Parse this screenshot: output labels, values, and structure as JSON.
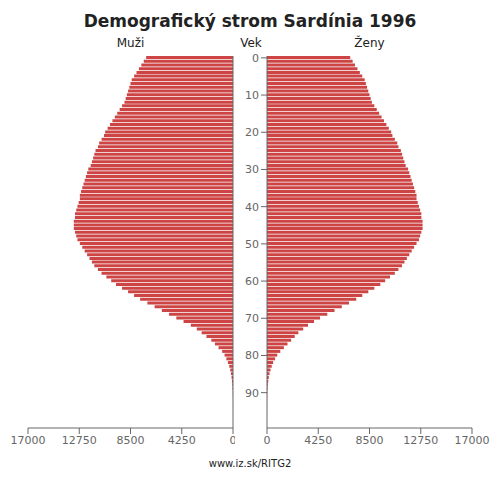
{
  "title": "Demografický strom Sardínia 1996",
  "annotations": [
    "www.iz.sk/RITG2"
  ],
  "chart_data": [
    {
      "type": "bar",
      "orientation": "horizontal",
      "title": "Muži",
      "color": "#cc4444",
      "y": [
        0,
        1,
        2,
        3,
        4,
        5,
        6,
        7,
        8,
        9,
        10,
        11,
        12,
        13,
        14,
        15,
        16,
        17,
        18,
        19,
        20,
        21,
        22,
        23,
        24,
        25,
        26,
        27,
        28,
        29,
        30,
        31,
        32,
        33,
        34,
        35,
        36,
        37,
        38,
        39,
        40,
        41,
        42,
        43,
        44,
        45,
        46,
        47,
        48,
        49,
        50,
        51,
        52,
        53,
        54,
        55,
        56,
        57,
        58,
        59,
        60,
        61,
        62,
        63,
        64,
        65,
        66,
        67,
        68,
        69,
        70,
        71,
        72,
        73,
        74,
        75,
        76,
        77,
        78,
        79,
        80,
        81,
        82,
        83,
        84,
        85,
        86,
        87,
        88,
        89,
        90,
        91,
        92,
        93,
        94,
        95,
        96,
        97,
        98,
        99
      ],
      "values": [
        7200,
        7400,
        7600,
        7800,
        8000,
        8200,
        8400,
        8500,
        8600,
        8700,
        8800,
        8900,
        9000,
        9200,
        9400,
        9600,
        9800,
        10000,
        10200,
        10400,
        10600,
        10700,
        10900,
        11100,
        11200,
        11400,
        11500,
        11600,
        11700,
        11800,
        12000,
        12100,
        12200,
        12300,
        12400,
        12500,
        12600,
        12700,
        12700,
        12800,
        12900,
        13000,
        13100,
        13100,
        13200,
        13200,
        13200,
        13100,
        13000,
        12900,
        12700,
        12500,
        12300,
        12100,
        11900,
        11700,
        11500,
        11200,
        10900,
        10500,
        10100,
        9700,
        9200,
        8700,
        8200,
        7700,
        7100,
        6500,
        5900,
        5300,
        4700,
        4100,
        3500,
        3000,
        2600,
        2200,
        1800,
        1500,
        1200,
        900,
        700,
        550,
        420,
        310,
        230,
        170,
        120,
        85,
        60,
        40,
        25,
        15,
        10,
        6,
        4,
        2,
        1,
        1,
        0,
        0
      ],
      "xlim": [
        17000,
        0
      ],
      "xticks": [
        17000,
        12750,
        8500,
        4250,
        0
      ],
      "ylim": [
        -0.5,
        99.5
      ],
      "tick_labels": "x",
      "grid": false
    },
    {
      "type": "bar",
      "orientation": "horizontal",
      "title": "Ženy",
      "y_label": "Vek",
      "color": "#cc4444",
      "y": [
        0,
        1,
        2,
        3,
        4,
        5,
        6,
        7,
        8,
        9,
        10,
        11,
        12,
        13,
        14,
        15,
        16,
        17,
        18,
        19,
        20,
        21,
        22,
        23,
        24,
        25,
        26,
        27,
        28,
        29,
        30,
        31,
        32,
        33,
        34,
        35,
        36,
        37,
        38,
        39,
        40,
        41,
        42,
        43,
        44,
        45,
        46,
        47,
        48,
        49,
        50,
        51,
        52,
        53,
        54,
        55,
        56,
        57,
        58,
        59,
        60,
        61,
        62,
        63,
        64,
        65,
        66,
        67,
        68,
        69,
        70,
        71,
        72,
        73,
        74,
        75,
        76,
        77,
        78,
        79,
        80,
        81,
        82,
        83,
        84,
        85,
        86,
        87,
        88,
        89,
        90,
        91,
        92,
        93,
        94,
        95,
        96,
        97,
        98,
        99
      ],
      "values": [
        6900,
        7100,
        7300,
        7500,
        7700,
        7900,
        8100,
        8200,
        8300,
        8400,
        8500,
        8600,
        8700,
        8900,
        9100,
        9300,
        9500,
        9700,
        9900,
        10100,
        10300,
        10400,
        10600,
        10800,
        10900,
        11100,
        11200,
        11300,
        11400,
        11500,
        11700,
        11800,
        11900,
        12000,
        12100,
        12200,
        12300,
        12400,
        12400,
        12500,
        12600,
        12700,
        12800,
        12800,
        12900,
        12900,
        12900,
        12800,
        12700,
        12600,
        12400,
        12200,
        12000,
        11800,
        11600,
        11400,
        11200,
        10900,
        10600,
        10200,
        9800,
        9400,
        8900,
        8400,
        7900,
        7400,
        6800,
        6200,
        5600,
        5000,
        4400,
        3900,
        3400,
        3000,
        2600,
        2300,
        2000,
        1700,
        1400,
        1100,
        850,
        670,
        510,
        390,
        290,
        210,
        150,
        105,
        70,
        45,
        28,
        18,
        11,
        7,
        4,
        2,
        1,
        1,
        0,
        0
      ],
      "xlim": [
        0,
        17000
      ],
      "xticks": [
        0,
        4250,
        8500,
        12750,
        17000
      ],
      "ylim": [
        -0.5,
        99.5
      ],
      "yticks": [
        0,
        10,
        20,
        30,
        40,
        50,
        60,
        70,
        80,
        90
      ],
      "grid": false
    }
  ]
}
